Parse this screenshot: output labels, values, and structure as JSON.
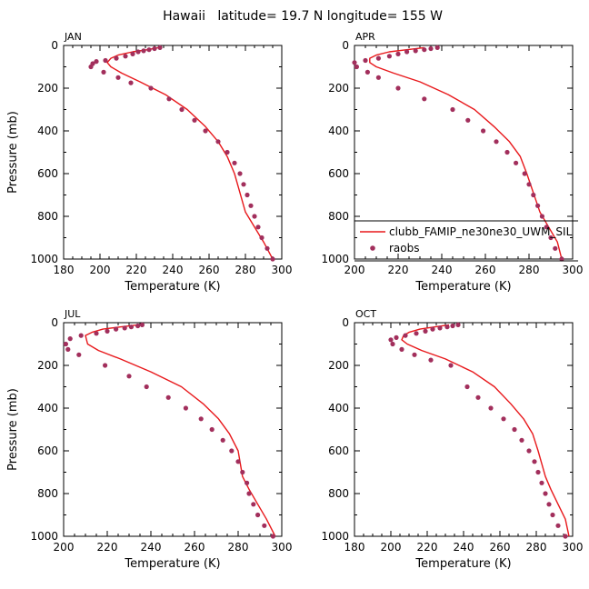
{
  "figure": {
    "title": "Hawaii   latitude= 19.7 N longitude= 155 W"
  },
  "colors": {
    "model": "#e8181b",
    "obs": "#a22f5c",
    "axis": "#000000"
  },
  "legend": {
    "model_label": "clubb_FAMIP_ne30ne30_UWM_SIL",
    "obs_label": "raobs"
  },
  "chart_data": [
    {
      "type": "scatter",
      "panel_label": "JAN",
      "xlabel": "Temperature (K)",
      "ylabel": "Pressure (mb)",
      "xlim": [
        180,
        300
      ],
      "ylim": [
        1000,
        0
      ],
      "xticks": [
        180,
        200,
        220,
        240,
        260,
        280,
        300
      ],
      "yticks": [
        0,
        200,
        400,
        600,
        800,
        1000
      ],
      "series": [
        {
          "name": "clubb_FAMIP_ne30ne30_UWM_SIL",
          "kind": "line",
          "x": [
            232,
            226,
            218,
            210,
            206,
            204,
            206,
            212,
            222,
            236,
            248,
            258,
            265,
            270,
            274,
            276,
            278,
            280,
            285,
            290,
            295
          ],
          "y": [
            10,
            20,
            30,
            45,
            60,
            80,
            100,
            130,
            170,
            230,
            300,
            380,
            450,
            520,
            600,
            660,
            720,
            780,
            850,
            920,
            1000
          ]
        },
        {
          "name": "raobs",
          "kind": "points",
          "x": [
            233,
            230,
            227,
            224,
            221,
            218,
            214,
            209,
            203,
            198,
            196,
            195,
            202,
            210,
            217,
            228,
            238,
            245,
            252,
            258,
            265,
            270,
            274,
            277,
            279,
            281,
            283,
            285,
            287,
            289,
            292,
            295
          ],
          "y": [
            10,
            15,
            20,
            25,
            30,
            40,
            50,
            60,
            70,
            75,
            85,
            100,
            125,
            150,
            175,
            200,
            250,
            300,
            350,
            400,
            450,
            500,
            550,
            600,
            650,
            700,
            750,
            800,
            850,
            900,
            950,
            1000
          ]
        }
      ]
    },
    {
      "type": "scatter",
      "panel_label": "APR",
      "xlabel": "Temperature (K)",
      "ylabel": "",
      "xlim": [
        200,
        300
      ],
      "ylim": [
        1000,
        0
      ],
      "xticks": [
        200,
        220,
        240,
        260,
        280,
        300
      ],
      "yticks": [
        0,
        200,
        400,
        600,
        800,
        1000
      ],
      "legend": true,
      "series": [
        {
          "name": "clubb_FAMIP_ne30ne30_UWM_SIL",
          "kind": "line",
          "x": [
            232,
            224,
            216,
            210,
            207,
            207,
            210,
            218,
            230,
            243,
            255,
            264,
            271,
            276,
            279,
            281,
            283,
            285,
            289,
            293,
            295
          ],
          "y": [
            10,
            20,
            30,
            45,
            60,
            80,
            100,
            130,
            170,
            230,
            300,
            380,
            450,
            520,
            600,
            660,
            720,
            780,
            850,
            920,
            1000
          ]
        },
        {
          "name": "raobs",
          "kind": "points",
          "x": [
            238,
            235,
            232,
            228,
            224,
            220,
            216,
            211,
            205,
            200,
            201,
            206,
            211,
            220,
            232,
            245,
            252,
            259,
            265,
            270,
            274,
            278,
            280,
            282,
            284,
            286,
            288,
            290,
            292,
            295
          ],
          "y": [
            10,
            15,
            20,
            25,
            30,
            40,
            50,
            60,
            70,
            80,
            100,
            125,
            150,
            200,
            250,
            300,
            350,
            400,
            450,
            500,
            550,
            600,
            650,
            700,
            750,
            800,
            850,
            900,
            950,
            1000
          ]
        }
      ]
    },
    {
      "type": "scatter",
      "panel_label": "JUL",
      "xlabel": "Temperature (K)",
      "ylabel": "Pressure (mb)",
      "xlim": [
        200,
        300
      ],
      "ylim": [
        1000,
        0
      ],
      "xticks": [
        200,
        220,
        240,
        260,
        280,
        300
      ],
      "yticks": [
        0,
        200,
        400,
        600,
        800,
        1000
      ],
      "series": [
        {
          "name": "clubb_FAMIP_ne30ne30_UWM_SIL",
          "kind": "line",
          "x": [
            234,
            226,
            218,
            213,
            210,
            211,
            216,
            226,
            240,
            254,
            264,
            271,
            276,
            280,
            281,
            282,
            285,
            289,
            293,
            297
          ],
          "y": [
            10,
            20,
            30,
            45,
            60,
            100,
            130,
            170,
            230,
            300,
            380,
            450,
            520,
            600,
            660,
            720,
            780,
            850,
            920,
            1000
          ]
        },
        {
          "name": "raobs",
          "kind": "points",
          "x": [
            236,
            234,
            231,
            228,
            224,
            220,
            215,
            208,
            203,
            201,
            202,
            207,
            219,
            230,
            238,
            248,
            256,
            263,
            268,
            273,
            277,
            280,
            282,
            284,
            285,
            287,
            289,
            292,
            296
          ],
          "y": [
            10,
            15,
            20,
            25,
            30,
            40,
            50,
            60,
            75,
            100,
            125,
            150,
            200,
            250,
            300,
            350,
            400,
            450,
            500,
            550,
            600,
            650,
            700,
            750,
            800,
            850,
            900,
            950,
            1000
          ]
        }
      ]
    },
    {
      "type": "scatter",
      "panel_label": "OCT",
      "xlabel": "Temperature (K)",
      "ylabel": "",
      "xlim": [
        180,
        300
      ],
      "ylim": [
        1000,
        0
      ],
      "xticks": [
        180,
        200,
        220,
        240,
        260,
        280,
        300
      ],
      "yticks": [
        0,
        200,
        400,
        600,
        800,
        1000
      ],
      "series": [
        {
          "name": "clubb_FAMIP_ne30ne30_UWM_SIL",
          "kind": "line",
          "x": [
            232,
            224,
            216,
            210,
            207,
            206,
            209,
            217,
            230,
            245,
            257,
            266,
            273,
            278,
            281,
            283,
            285,
            288,
            292,
            296,
            298
          ],
          "y": [
            10,
            20,
            30,
            45,
            60,
            80,
            100,
            130,
            170,
            230,
            300,
            380,
            450,
            520,
            600,
            660,
            720,
            780,
            850,
            920,
            1000
          ]
        },
        {
          "name": "raobs",
          "kind": "points",
          "x": [
            237,
            234,
            231,
            227,
            223,
            219,
            214,
            208,
            203,
            200,
            201,
            206,
            213,
            222,
            233,
            242,
            248,
            255,
            262,
            268,
            272,
            276,
            279,
            281,
            283,
            285,
            287,
            289,
            292,
            296
          ],
          "y": [
            10,
            15,
            20,
            25,
            30,
            40,
            50,
            60,
            70,
            80,
            100,
            125,
            150,
            175,
            200,
            300,
            350,
            400,
            450,
            500,
            550,
            600,
            650,
            700,
            750,
            800,
            850,
            900,
            950,
            1000
          ]
        }
      ]
    }
  ]
}
